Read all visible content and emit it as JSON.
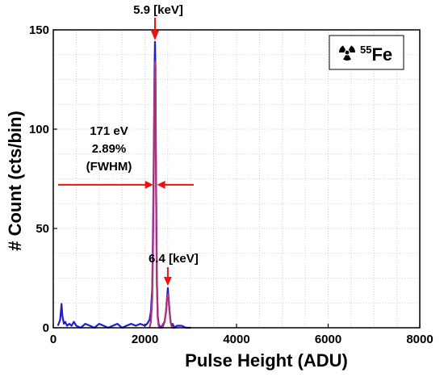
{
  "chart_data": {
    "type": "line",
    "xlabel": "Pulse Height (ADU)",
    "ylabel": "# Count (cts/bin)",
    "xlim": [
      0,
      8000
    ],
    "ylim": [
      0,
      150
    ],
    "xticks": [
      "0",
      "2000",
      "4000",
      "6000",
      "8000"
    ],
    "yticks": [
      "0",
      "50",
      "100",
      "150"
    ],
    "grid": true,
    "legend": {
      "isotope_mass": "55",
      "isotope_symbol": "Fe",
      "icon": "radiation-icon",
      "placement": "top-right"
    },
    "series": [
      {
        "color": "#1f1fd0",
        "x": [
          100,
          150,
          180,
          200,
          230,
          260,
          300,
          350,
          400,
          450,
          500,
          600,
          700,
          800,
          900,
          1000,
          1100,
          1200,
          1300,
          1400,
          1500,
          1600,
          1700,
          1800,
          1900,
          2000,
          2050,
          2100,
          2130,
          2160,
          2180,
          2200,
          2210,
          2220,
          2230,
          2240,
          2250,
          2260,
          2280,
          2300,
          2320,
          2350,
          2380,
          2400,
          2430,
          2460,
          2480,
          2500,
          2520,
          2540,
          2560,
          2580,
          2600,
          2650,
          2700,
          2800,
          2900,
          3000
        ],
        "y": [
          1,
          4,
          12,
          6,
          2,
          3,
          1,
          2,
          1,
          3,
          1,
          0,
          2,
          1,
          0,
          2,
          1,
          0,
          1,
          2,
          0,
          1,
          2,
          1,
          2,
          1,
          2,
          4,
          8,
          20,
          55,
          105,
          130,
          144,
          130,
          90,
          55,
          25,
          6,
          2,
          1,
          0,
          1,
          2,
          3,
          8,
          14,
          20,
          14,
          8,
          3,
          1,
          2,
          0,
          1,
          1,
          0,
          0
        ]
      },
      {
        "color": "#b0307a",
        "x": [
          2100,
          2130,
          2160,
          2180,
          2200,
          2210,
          2220,
          2230,
          2240,
          2250,
          2260,
          2280,
          2300,
          2320,
          2350,
          2380,
          2400,
          2430,
          2460,
          2480,
          2500,
          2520,
          2540,
          2560,
          2580,
          2600,
          2650
        ],
        "y": [
          0,
          3,
          15,
          45,
          95,
          120,
          134,
          120,
          85,
          50,
          22,
          5,
          1,
          0,
          0,
          0,
          1,
          3,
          8,
          14,
          17,
          14,
          8,
          3,
          1,
          0,
          0
        ]
      }
    ],
    "annotations": {
      "peak1": "5.9 [keV]",
      "peak1_x": 2220,
      "peak2": "6.4 [keV]",
      "peak2_x": 2500,
      "fwhm_line1": "171 eV",
      "fwhm_line2": "2.89%",
      "fwhm_line3": "(FWHM)",
      "fwhm_y": 72,
      "fwhm_left_x": 2180,
      "fwhm_right_x": 2265
    }
  }
}
